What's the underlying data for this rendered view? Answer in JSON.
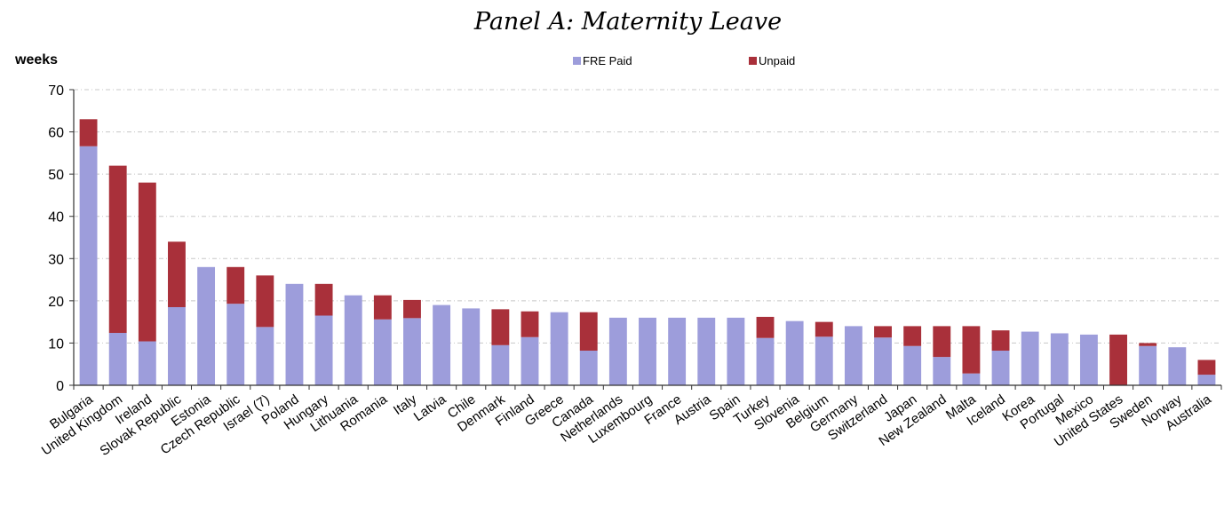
{
  "colors": {
    "paid": "#9d9ddb",
    "unpaid": "#a9303a",
    "axis": "#333333",
    "grid": "#c8c8c8"
  },
  "chart_data": {
    "type": "bar",
    "stacked": true,
    "title": "Panel A: Maternity Leave",
    "ylabel": "weeks",
    "ylim": [
      0,
      70
    ],
    "yticks": [
      0,
      10,
      20,
      30,
      40,
      50,
      60,
      70
    ],
    "grid": "horizontal dashed",
    "legend_position": "top-center",
    "categories": [
      "Bulgaria",
      "United Kingdom",
      "Ireland",
      "Slovak Republic",
      "Estonia",
      "Czech Republic",
      "Israel (7)",
      "Poland",
      "Hungary",
      "Lithuania",
      "Romania",
      "Italy",
      "Latvia",
      "Chile",
      "Denmark",
      "Finland",
      "Greece",
      "Canada",
      "Netherlands",
      "Luxembourg",
      "France",
      "Austria",
      "Spain",
      "Turkey",
      "Slovenia",
      "Belgium",
      "Germany",
      "Switzerland",
      "Japan",
      "New Zealand",
      "Malta",
      "Iceland",
      "Korea",
      "Portugal",
      "Mexico",
      "United States",
      "Sweden",
      "Norway",
      "Australia"
    ],
    "series": [
      {
        "name": "FRE Paid",
        "values": [
          56.6,
          12.4,
          10.4,
          18.5,
          28,
          19.3,
          13.8,
          24,
          16.5,
          21.3,
          15.6,
          15.9,
          19,
          18.2,
          9.5,
          11.4,
          17.3,
          8.2,
          16,
          16,
          16,
          16,
          16,
          11.2,
          15.2,
          11.5,
          14,
          11.3,
          9.3,
          6.7,
          2.8,
          8.2,
          12.7,
          12.3,
          12,
          0,
          9.3,
          9,
          2.5
        ]
      },
      {
        "name": "Unpaid",
        "values": [
          6.4,
          39.6,
          37.6,
          15.5,
          0,
          8.7,
          12.2,
          0,
          7.5,
          0,
          5.7,
          4.3,
          0,
          0,
          8.5,
          6.1,
          0,
          9.1,
          0,
          0,
          0,
          0,
          0,
          5,
          0,
          3.5,
          0,
          2.7,
          4.7,
          7.3,
          11.2,
          4.8,
          0,
          0,
          0,
          12,
          0.7,
          0,
          3.5
        ]
      }
    ]
  }
}
